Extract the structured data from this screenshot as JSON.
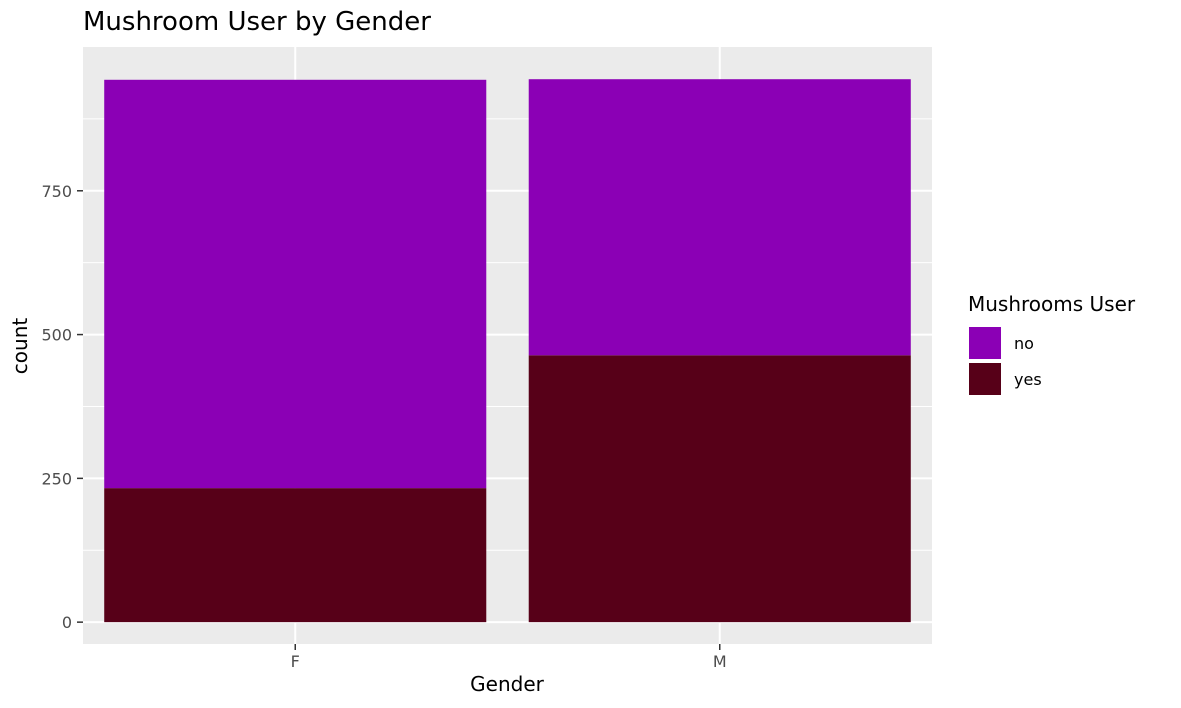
{
  "chart_data": {
    "type": "bar",
    "stacked": true,
    "title": "Mushroom User by Gender",
    "xlabel": "Gender",
    "ylabel": "count",
    "categories": [
      "F",
      "M"
    ],
    "series": [
      {
        "name": "no",
        "values": [
          710,
          480
        ],
        "color": "#8B00B5"
      },
      {
        "name": "yes",
        "values": [
          233,
          464
        ],
        "color": "#570018"
      }
    ],
    "ylim": [
      -38,
      1000
    ],
    "yticks": [
      0,
      250,
      500,
      750
    ],
    "ytick_labels": [
      "0",
      "250",
      "500",
      "750"
    ],
    "legend": {
      "title": "Mushrooms User",
      "placement": "right",
      "entries": [
        "no",
        "yes"
      ]
    },
    "grid": true
  }
}
